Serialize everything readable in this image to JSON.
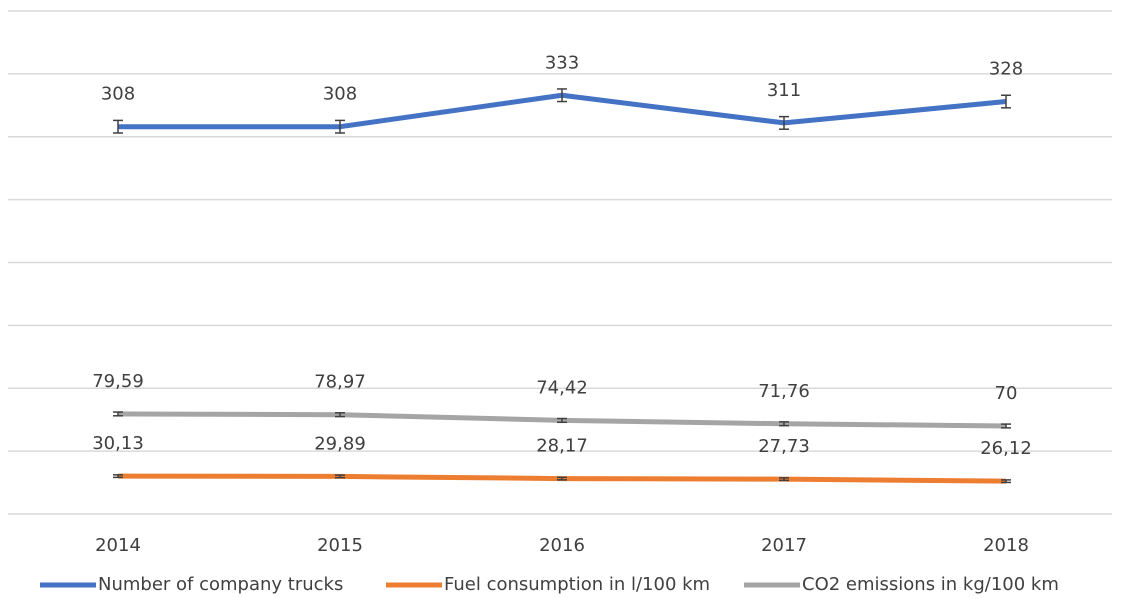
{
  "chart_data": {
    "type": "line",
    "categories": [
      "2014",
      "2015",
      "2016",
      "2017",
      "2018"
    ],
    "series": [
      {
        "name": "Number of company trucks",
        "color": "#4472c4",
        "values": [
          308,
          308,
          333,
          311,
          328
        ],
        "errors": [
          5,
          5,
          5,
          5,
          5
        ]
      },
      {
        "name": "Fuel consumption in l/100 km",
        "color": "#ed7d31",
        "values": [
          30.13,
          29.89,
          28.17,
          27.73,
          26.12
        ],
        "value_labels": [
          "30,13",
          "29,89",
          "28,17",
          "27,73",
          "26,12"
        ],
        "errors": [
          1,
          1,
          1,
          1,
          1
        ]
      },
      {
        "name": "CO2 emissions in kg/100 km",
        "color": "#a5a5a5",
        "values": [
          79.59,
          78.97,
          74.42,
          71.76,
          70
        ],
        "value_labels": [
          "79,59",
          "78,97",
          "74,42",
          "71,76",
          "70"
        ],
        "errors": [
          1.5,
          1.5,
          1.5,
          1.5,
          1.5
        ]
      }
    ],
    "ylim": [
      0,
      400
    ],
    "yticks": [
      0,
      50,
      100,
      150,
      200,
      250,
      300,
      350,
      400
    ],
    "grid": true
  }
}
